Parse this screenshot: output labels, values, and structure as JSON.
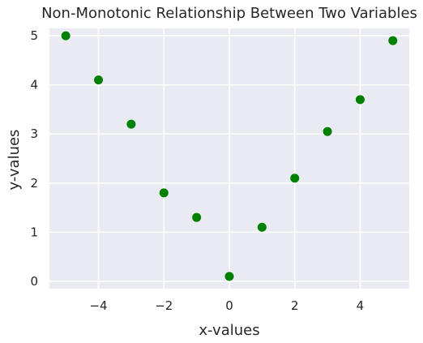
{
  "chart_data": {
    "type": "scatter",
    "title": "Non-Monotonic Relationship Between Two Variables",
    "xlabel": "x-values",
    "ylabel": "y-values",
    "x": [
      -5,
      -4,
      -3,
      -2,
      -1,
      0,
      1,
      2,
      3,
      4,
      5
    ],
    "y": [
      5.0,
      4.1,
      3.2,
      1.8,
      1.3,
      0.1,
      1.1,
      2.1,
      3.05,
      3.7,
      4.9
    ],
    "xlim": [
      -5.5,
      5.5
    ],
    "ylim": [
      -0.15,
      5.15
    ],
    "xticks": [
      -4,
      -2,
      0,
      2,
      4
    ],
    "xtick_labels": [
      "−4",
      "−2",
      "0",
      "2",
      "4"
    ],
    "yticks": [
      0,
      1,
      2,
      3,
      4,
      5
    ],
    "ytick_labels": [
      "0",
      "1",
      "2",
      "3",
      "4",
      "5"
    ],
    "grid": true,
    "colors": {
      "point": "#008000",
      "plot_background": "#eaeaf2",
      "grid": "#ffffff"
    }
  }
}
